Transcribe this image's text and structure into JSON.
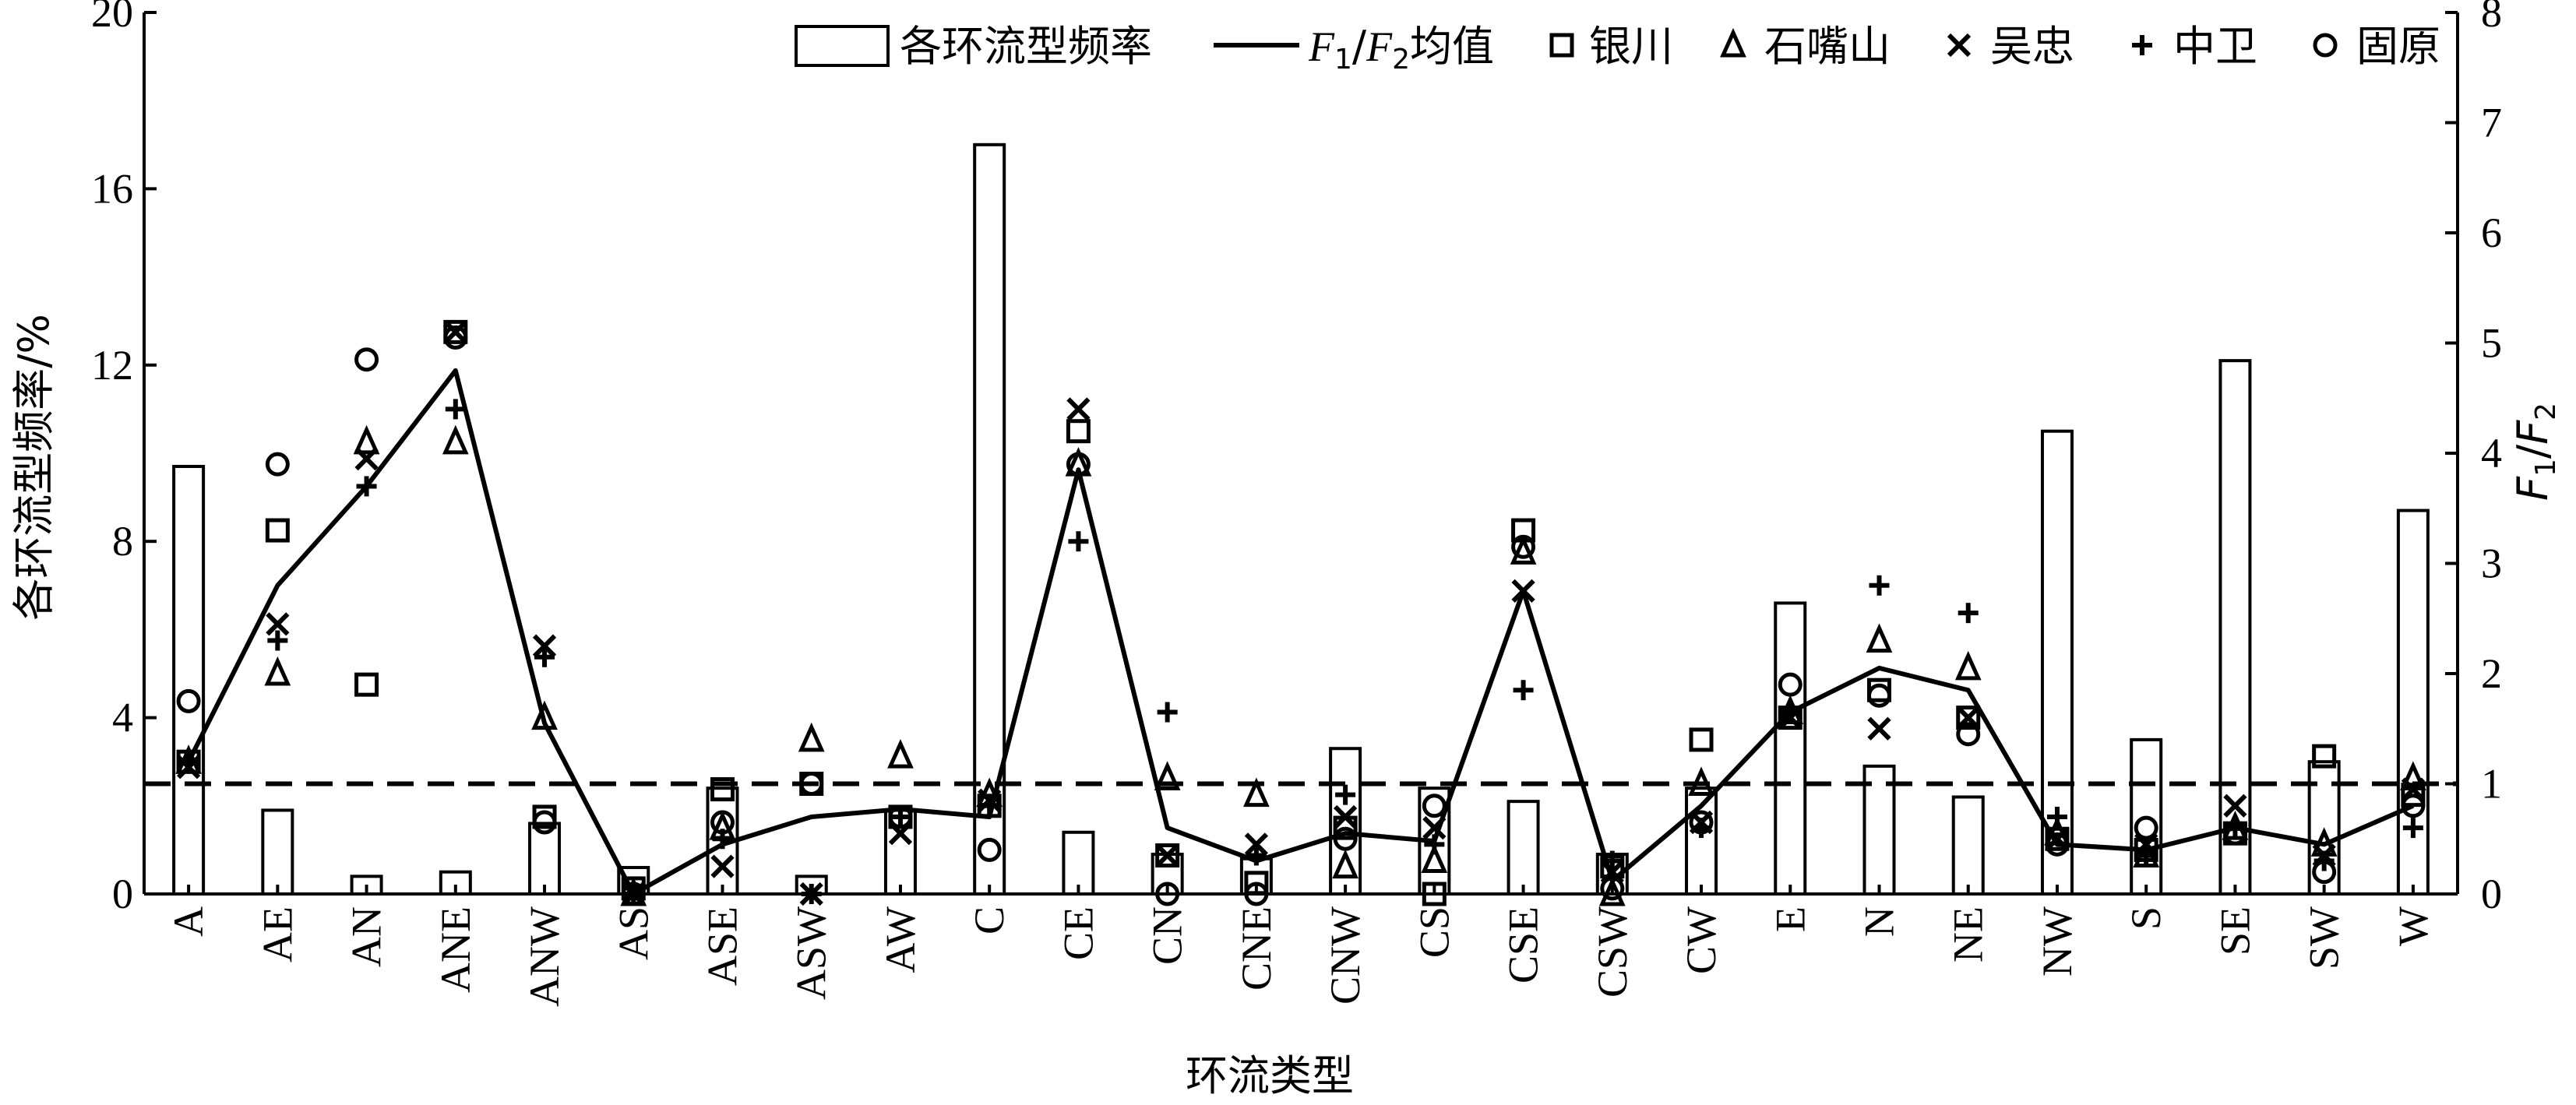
{
  "chart_data": {
    "type": "bar",
    "categories": [
      "A",
      "AE",
      "AN",
      "ANE",
      "ANW",
      "AS",
      "ASE",
      "ASW",
      "AW",
      "C",
      "CE",
      "CN",
      "CNE",
      "CNW",
      "CS",
      "CSE",
      "CSW",
      "CW",
      "E",
      "N",
      "NE",
      "NW",
      "S",
      "SE",
      "SW",
      "W"
    ],
    "xlabel": "环流类型",
    "ylabel_left": "各环流型频率/%",
    "ylabel_right_prefix": "F",
    "ylabel_right_sub1": "1",
    "ylabel_right_sub2": "2",
    "ylim_left": [
      0,
      20
    ],
    "ylim_right": [
      0,
      8
    ],
    "yticks_left": [
      "0",
      "4",
      "8",
      "12",
      "16",
      "20"
    ],
    "yticks_right": [
      "0",
      "1",
      "2",
      "3",
      "4",
      "5",
      "6",
      "7",
      "8"
    ],
    "reference_line_right": 1,
    "grid": false,
    "legend_position": "top-right",
    "legend": {
      "bar_label": "各环流型频率",
      "mean_prefix": "F",
      "mean_sub1": "1",
      "mean_sub2": "2",
      "mean_suffix": "均值",
      "yinchuan": "银川",
      "shizuishan": "石嘴山",
      "wuzhong": "吴忠",
      "zhongwei": "中卫",
      "guyuan": "固原"
    },
    "bars": {
      "name": "各环流型频率",
      "axis": "left",
      "values": [
        9.7,
        1.9,
        0.4,
        0.5,
        1.6,
        0.6,
        2.4,
        0.4,
        1.9,
        17.0,
        1.4,
        0.9,
        0.8,
        3.3,
        2.4,
        2.1,
        0.9,
        2.4,
        6.6,
        2.9,
        2.2,
        10.5,
        3.5,
        12.1,
        3.0,
        8.7
      ]
    },
    "mean_line": {
      "name": "F1/F2均值",
      "axis": "right",
      "values": [
        1.2,
        2.8,
        3.7,
        4.75,
        1.55,
        0.0,
        0.45,
        0.7,
        0.77,
        0.7,
        3.85,
        0.6,
        0.3,
        0.55,
        0.48,
        2.75,
        0.12,
        0.8,
        1.65,
        2.05,
        1.85,
        0.45,
        0.4,
        0.6,
        0.45,
        0.8
      ]
    },
    "series": [
      {
        "name": "银川",
        "marker": "square",
        "axis": "right",
        "values": [
          1.2,
          3.3,
          1.9,
          5.1,
          0.7,
          0.05,
          0.95,
          1.0,
          0.7,
          0.8,
          4.2,
          0.35,
          0.1,
          0.6,
          0.0,
          3.3,
          0.25,
          1.4,
          1.6,
          1.85,
          1.6,
          0.5,
          0.4,
          0.55,
          1.25,
          0.9
        ]
      },
      {
        "name": "石嘴山",
        "marker": "triangle",
        "axis": "right",
        "values": [
          1.2,
          2.0,
          4.1,
          4.1,
          1.6,
          0.0,
          0.6,
          1.4,
          1.25,
          0.9,
          3.9,
          1.05,
          0.9,
          0.25,
          0.3,
          3.1,
          0.0,
          1.0,
          1.65,
          2.3,
          2.05,
          0.55,
          0.35,
          0.6,
          0.45,
          1.05
        ]
      },
      {
        "name": "吴忠",
        "marker": "x",
        "axis": "right",
        "values": [
          1.15,
          2.45,
          3.95,
          5.1,
          2.25,
          0.0,
          0.25,
          0.0,
          0.55,
          0.85,
          4.4,
          0.35,
          0.45,
          0.7,
          0.6,
          2.75,
          0.2,
          0.65,
          1.6,
          1.5,
          1.6,
          0.5,
          0.45,
          0.8,
          0.35,
          0.95
        ]
      },
      {
        "name": "中卫",
        "marker": "plus",
        "axis": "right",
        "values": [
          1.2,
          2.3,
          3.7,
          4.4,
          2.15,
          0.0,
          0.5,
          0.0,
          0.7,
          0.8,
          3.2,
          1.65,
          0.35,
          0.9,
          0.45,
          1.85,
          0.3,
          0.6,
          1.65,
          2.8,
          2.55,
          0.7,
          0.35,
          0.6,
          0.3,
          0.6
        ]
      },
      {
        "name": "固原",
        "marker": "circle",
        "axis": "right",
        "values": [
          1.75,
          3.9,
          4.85,
          5.05,
          0.65,
          0.0,
          0.65,
          1.0,
          0.7,
          0.4,
          3.9,
          0.0,
          0.0,
          0.5,
          0.8,
          3.15,
          0.05,
          0.65,
          1.9,
          1.8,
          1.45,
          0.45,
          0.6,
          0.55,
          0.2,
          0.8
        ]
      }
    ]
  }
}
